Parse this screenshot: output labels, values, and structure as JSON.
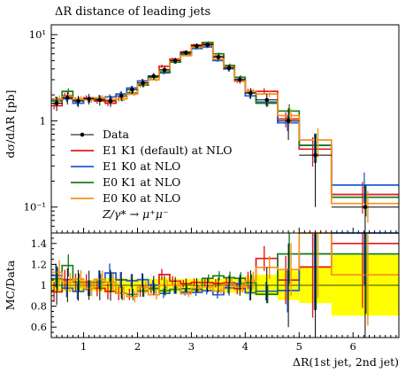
{
  "chart_data": {
    "type": "line",
    "title": "ΔR distance of leading jets",
    "xlabel": "ΔR(1st jet, 2nd jet)",
    "main": {
      "ylabel": "dσ/dΔR [pb]",
      "yscale": "log",
      "ylim": [
        0.05,
        13
      ],
      "yticks": [
        {
          "v": 10,
          "label": "10¹"
        },
        {
          "v": 1,
          "label": "1"
        },
        {
          "v": 0.1,
          "label": "10⁻¹"
        }
      ]
    },
    "ratio": {
      "ylabel": "MC/Data",
      "ylim": [
        0.5,
        1.5
      ],
      "yticks": [
        0.6,
        0.8,
        1,
        1.2,
        1.4
      ],
      "yticklabels": [
        "0.6",
        "0.8",
        "1",
        "1.2",
        "1.4"
      ]
    },
    "xlim": [
      0.4,
      6.85
    ],
    "xticks": [
      1,
      2,
      3,
      4,
      5,
      6
    ],
    "xticklabels": [
      "1",
      "2",
      "3",
      "4",
      "5",
      "6"
    ],
    "bin_edges": [
      0.4,
      0.6,
      0.8,
      1.0,
      1.2,
      1.4,
      1.6,
      1.8,
      2.0,
      2.2,
      2.4,
      2.6,
      2.8,
      3.0,
      3.2,
      3.4,
      3.6,
      3.8,
      4.0,
      4.2,
      4.6,
      5.0,
      5.6,
      6.85
    ],
    "data": {
      "name": "Data",
      "color": "#000000",
      "values": [
        1.6,
        1.85,
        1.7,
        1.8,
        1.75,
        1.7,
        1.95,
        2.3,
        2.75,
        3.3,
        3.9,
        5.0,
        6.2,
        7.4,
        7.6,
        5.5,
        4.1,
        3.0,
        2.1,
        1.75,
        1.0,
        0.4,
        0.1
      ],
      "errors": [
        0.3,
        0.3,
        0.25,
        0.25,
        0.25,
        0.25,
        0.25,
        0.25,
        0.3,
        0.3,
        0.35,
        0.4,
        0.4,
        0.5,
        0.5,
        0.4,
        0.4,
        0.3,
        0.3,
        0.3,
        0.4,
        0.3,
        0.08
      ]
    },
    "series": [
      {
        "name": "E1 K1 (default) at NLO",
        "color": "#e31a1c",
        "values": [
          1.5,
          1.95,
          1.75,
          1.85,
          1.7,
          1.6,
          1.8,
          2.1,
          2.6,
          3.2,
          4.3,
          5.2,
          6.3,
          7.6,
          7.8,
          5.6,
          4.2,
          2.9,
          2.2,
          2.2,
          1.05,
          0.47,
          0.14
        ]
      },
      {
        "name": "E1 K0 at NLO",
        "color": "#1f5bd8",
        "values": [
          1.75,
          1.8,
          1.6,
          1.75,
          1.85,
          1.9,
          2.05,
          2.4,
          2.9,
          3.3,
          3.6,
          4.8,
          5.8,
          6.9,
          7.2,
          5.0,
          4.0,
          3.05,
          1.95,
          1.65,
          0.95,
          0.52,
          0.18
        ]
      },
      {
        "name": "E0 K1 at NLO",
        "color": "#1b7d1b",
        "values": [
          1.7,
          2.2,
          1.75,
          1.75,
          1.8,
          1.75,
          1.8,
          2.1,
          2.6,
          3.2,
          3.7,
          4.8,
          6.0,
          7.1,
          8.1,
          6.0,
          4.4,
          3.2,
          2.15,
          1.6,
          1.3,
          0.52,
          0.13
        ]
      },
      {
        "name": "E0 K0 at NLO",
        "color": "#f7901e",
        "values": [
          1.8,
          1.9,
          1.8,
          1.75,
          1.85,
          1.75,
          1.8,
          2.05,
          2.7,
          3.0,
          3.9,
          5.0,
          5.7,
          7.2,
          7.5,
          5.2,
          4.15,
          2.95,
          2.2,
          2.05,
          1.15,
          0.6,
          0.11
        ]
      }
    ],
    "process_label": "Z/γ* → μ⁺μ⁻",
    "band_color": "#ffff00",
    "ratio_band": [
      0.93,
      0.94,
      0.93,
      0.95,
      0.94,
      0.93,
      0.93,
      0.94,
      0.94,
      0.94,
      0.93,
      0.94,
      0.94,
      0.94,
      0.94,
      0.94,
      0.93,
      0.93,
      0.91,
      0.9,
      0.86,
      0.83,
      0.71
    ],
    "legend_position": "lower-left"
  }
}
